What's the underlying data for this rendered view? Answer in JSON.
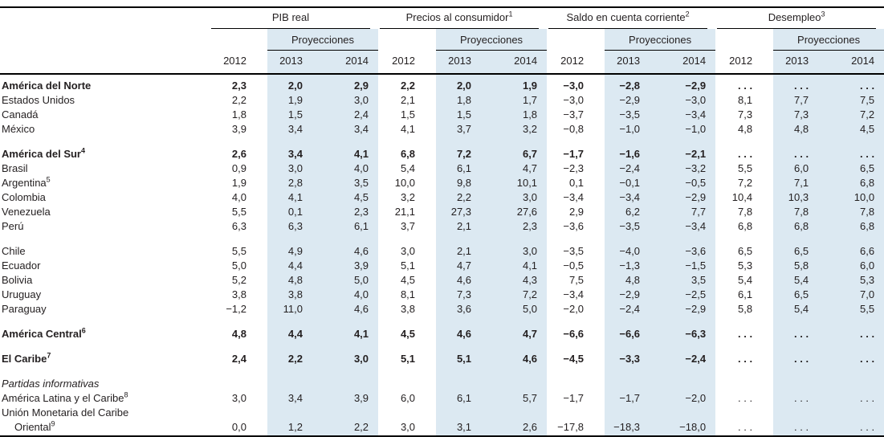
{
  "colors": {
    "projection_band": "#dce9f2",
    "text": "#231f20",
    "rule": "#000000"
  },
  "header": {
    "projections_label": "Proyecciones",
    "years": [
      "2012",
      "2013",
      "2014"
    ],
    "groups": [
      {
        "label": "PIB real",
        "footnote": ""
      },
      {
        "label": "Precios al consumidor",
        "footnote": "1"
      },
      {
        "label": "Saldo en cuenta corriente",
        "footnote": "2"
      },
      {
        "label": "Desempleo",
        "footnote": "3"
      }
    ]
  },
  "rows": [
    {
      "name": "América del Norte",
      "footnote": "",
      "style": "bold",
      "gap_before": false,
      "values": [
        "2,3",
        "2,0",
        "2,9",
        "2,2",
        "2,0",
        "1,9",
        "−3,0",
        "−2,8",
        "−2,9",
        ". . .",
        ". . .",
        ". . ."
      ]
    },
    {
      "name": "Estados Unidos",
      "footnote": "",
      "style": "",
      "gap_before": false,
      "values": [
        "2,2",
        "1,9",
        "3,0",
        "2,1",
        "1,8",
        "1,7",
        "−3,0",
        "−2,9",
        "−3,0",
        "8,1",
        "7,7",
        "7,5"
      ]
    },
    {
      "name": "Canadá",
      "footnote": "",
      "style": "",
      "gap_before": false,
      "values": [
        "1,8",
        "1,5",
        "2,4",
        "1,5",
        "1,5",
        "1,8",
        "−3,7",
        "−3,5",
        "−3,4",
        "7,3",
        "7,3",
        "7,2"
      ]
    },
    {
      "name": "México",
      "footnote": "",
      "style": "",
      "gap_before": false,
      "values": [
        "3,9",
        "3,4",
        "3,4",
        "4,1",
        "3,7",
        "3,2",
        "−0,8",
        "−1,0",
        "−1,0",
        "4,8",
        "4,8",
        "4,5"
      ]
    },
    {
      "name": "América del Sur",
      "footnote": "4",
      "style": "bold",
      "gap_before": true,
      "values": [
        "2,6",
        "3,4",
        "4,1",
        "6,8",
        "7,2",
        "6,7",
        "−1,7",
        "−1,6",
        "−2,1",
        ". . .",
        ". . .",
        ". . ."
      ]
    },
    {
      "name": "Brasil",
      "footnote": "",
      "style": "",
      "gap_before": false,
      "values": [
        "0,9",
        "3,0",
        "4,0",
        "5,4",
        "6,1",
        "4,7",
        "−2,3",
        "−2,4",
        "−3,2",
        "5,5",
        "6,0",
        "6,5"
      ]
    },
    {
      "name": "Argentina",
      "footnote": "5",
      "style": "",
      "gap_before": false,
      "values": [
        "1,9",
        "2,8",
        "3,5",
        "10,0",
        "9,8",
        "10,1",
        "0,1",
        "−0,1",
        "−0,5",
        "7,2",
        "7,1",
        "6,8"
      ]
    },
    {
      "name": "Colombia",
      "footnote": "",
      "style": "",
      "gap_before": false,
      "values": [
        "4,0",
        "4,1",
        "4,5",
        "3,2",
        "2,2",
        "3,0",
        "−3,4",
        "−3,4",
        "−2,9",
        "10,4",
        "10,3",
        "10,0"
      ]
    },
    {
      "name": "Venezuela",
      "footnote": "",
      "style": "",
      "gap_before": false,
      "values": [
        "5,5",
        "0,1",
        "2,3",
        "21,1",
        "27,3",
        "27,6",
        "2,9",
        "6,2",
        "7,7",
        "7,8",
        "7,8",
        "7,8"
      ]
    },
    {
      "name": "Perú",
      "footnote": "",
      "style": "",
      "gap_before": false,
      "values": [
        "6,3",
        "6,3",
        "6,1",
        "3,7",
        "2,1",
        "2,3",
        "−3,6",
        "−3,5",
        "−3,4",
        "6,8",
        "6,8",
        "6,8"
      ]
    },
    {
      "name": "Chile",
      "footnote": "",
      "style": "",
      "gap_before": true,
      "values": [
        "5,5",
        "4,9",
        "4,6",
        "3,0",
        "2,1",
        "3,0",
        "−3,5",
        "−4,0",
        "−3,6",
        "6,5",
        "6,5",
        "6,6"
      ]
    },
    {
      "name": "Ecuador",
      "footnote": "",
      "style": "",
      "gap_before": false,
      "values": [
        "5,0",
        "4,4",
        "3,9",
        "5,1",
        "4,7",
        "4,1",
        "−0,5",
        "−1,3",
        "−1,5",
        "5,3",
        "5,8",
        "6,0"
      ]
    },
    {
      "name": "Bolivia",
      "footnote": "",
      "style": "",
      "gap_before": false,
      "values": [
        "5,2",
        "4,8",
        "5,0",
        "4,5",
        "4,6",
        "4,3",
        "7,5",
        "4,8",
        "3,5",
        "5,4",
        "5,4",
        "5,3"
      ]
    },
    {
      "name": "Uruguay",
      "footnote": "",
      "style": "",
      "gap_before": false,
      "values": [
        "3,8",
        "3,8",
        "4,0",
        "8,1",
        "7,3",
        "7,2",
        "−3,4",
        "−2,9",
        "−2,5",
        "6,1",
        "6,5",
        "7,0"
      ]
    },
    {
      "name": "Paraguay",
      "footnote": "",
      "style": "",
      "gap_before": false,
      "values": [
        "−1,2",
        "11,0",
        "4,6",
        "3,8",
        "3,6",
        "5,0",
        "−2,0",
        "−2,4",
        "−2,9",
        "5,8",
        "5,4",
        "5,5"
      ]
    },
    {
      "name": "América Central",
      "footnote": "6",
      "style": "bold",
      "gap_before": true,
      "values": [
        "4,8",
        "4,4",
        "4,1",
        "4,5",
        "4,6",
        "4,7",
        "−6,6",
        "−6,6",
        "−6,3",
        ". . .",
        ". . .",
        ". . ."
      ]
    },
    {
      "name": "El Caribe",
      "footnote": "7",
      "style": "bold",
      "gap_before": true,
      "values": [
        "2,4",
        "2,2",
        "3,0",
        "5,1",
        "5,1",
        "4,6",
        "−4,5",
        "−3,3",
        "−2,4",
        ". . .",
        ". . .",
        ". . ."
      ]
    },
    {
      "name": "Partidas informativas",
      "footnote": "",
      "style": "italic",
      "gap_before": true,
      "values": [
        "",
        "",
        "",
        "",
        "",
        "",
        "",
        "",
        "",
        "",
        "",
        ""
      ]
    },
    {
      "name": "América Latina y el Caribe",
      "footnote": "8",
      "style": "",
      "gap_before": false,
      "values": [
        "3,0",
        "3,4",
        "3,9",
        "6,0",
        "6,1",
        "5,7",
        "−1,7",
        "−1,7",
        "−2,0",
        ". . .",
        ". . .",
        ". . ."
      ]
    },
    {
      "name": "Unión Monetaria del Caribe",
      "name2": "Oriental",
      "footnote2": "9",
      "footnote": "",
      "style": "",
      "gap_before": false,
      "values": [
        "0,0",
        "1,2",
        "2,2",
        "3,0",
        "3,1",
        "2,6",
        "−17,8",
        "−18,3",
        "−18,0",
        ". . .",
        ". . .",
        ". . ."
      ]
    }
  ]
}
